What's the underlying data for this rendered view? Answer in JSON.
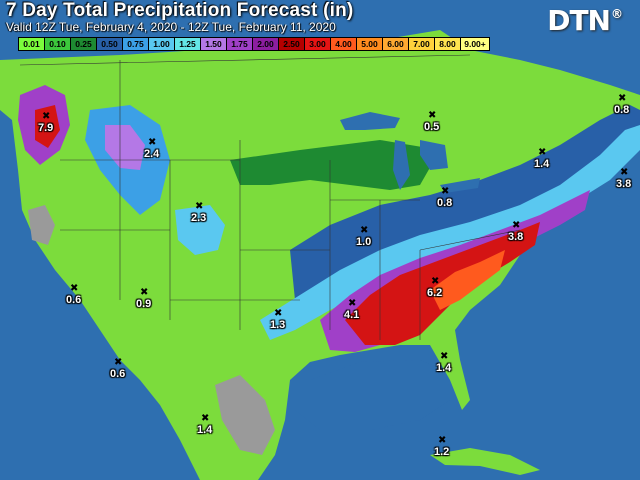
{
  "header": {
    "title": "7 Day Total Precipitation Forecast (in)",
    "subtitle": "Valid 12Z Tue, February 4, 2020 - 12Z Tue, February 11, 2020",
    "logo_text": "DTN",
    "logo_mark": "®"
  },
  "legend": [
    {
      "label": "0.01",
      "color": "#7cfc3c"
    },
    {
      "label": "0.10",
      "color": "#3cc83c"
    },
    {
      "label": "0.25",
      "color": "#1e8a32"
    },
    {
      "label": "0.50",
      "color": "#2860a8"
    },
    {
      "label": "0.75",
      "color": "#3ca0e6"
    },
    {
      "label": "1.00",
      "color": "#5ac8f0"
    },
    {
      "label": "1.25",
      "color": "#64e6e6"
    },
    {
      "label": "1.50",
      "color": "#b478e6"
    },
    {
      "label": "1.75",
      "color": "#a040c8"
    },
    {
      "label": "2.00",
      "color": "#8c1ea0"
    },
    {
      "label": "2.50",
      "color": "#b40000"
    },
    {
      "label": "3.00",
      "color": "#e61414"
    },
    {
      "label": "4.00",
      "color": "#ff5a1e"
    },
    {
      "label": "5.00",
      "color": "#ff8c1e"
    },
    {
      "label": "6.00",
      "color": "#ffaa32"
    },
    {
      "label": "7.00",
      "color": "#ffd23c"
    },
    {
      "label": "8.00",
      "color": "#ffe650"
    },
    {
      "label": "9.00+",
      "color": "#ffff82"
    }
  ],
  "values": [
    {
      "id": "pnw",
      "text": "7.9"
    },
    {
      "id": "idaho",
      "text": "2.4"
    },
    {
      "id": "colorado",
      "text": "2.3"
    },
    {
      "id": "michigan",
      "text": "0.5"
    },
    {
      "id": "maine",
      "text": "0.8"
    },
    {
      "id": "newengland",
      "text": "1.4"
    },
    {
      "id": "novascotia",
      "text": "3.8"
    },
    {
      "id": "ohio",
      "text": "0.8"
    },
    {
      "id": "missouri",
      "text": "1.0"
    },
    {
      "id": "virginia",
      "text": "3.8"
    },
    {
      "id": "georgia",
      "text": "6.2"
    },
    {
      "id": "mississippi",
      "text": "4.1"
    },
    {
      "id": "texas",
      "text": "1.3"
    },
    {
      "id": "florida",
      "text": "1.4"
    },
    {
      "id": "socal",
      "text": "0.6"
    },
    {
      "id": "arizona",
      "text": "0.9"
    },
    {
      "id": "baja",
      "text": "0.6"
    },
    {
      "id": "mexico",
      "text": "1.4"
    },
    {
      "id": "cuba",
      "text": "1.2"
    }
  ]
}
